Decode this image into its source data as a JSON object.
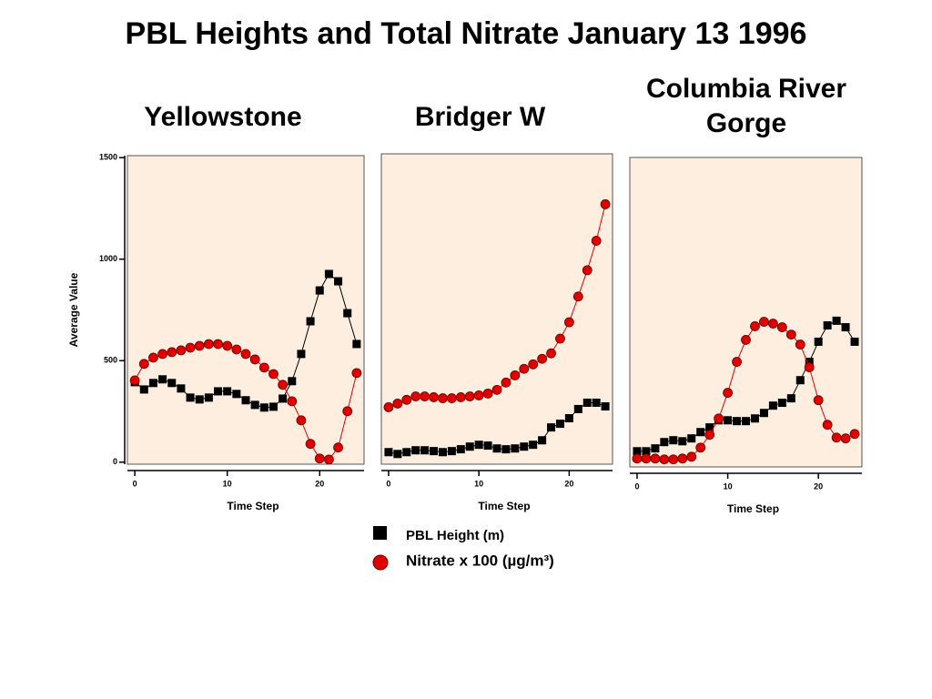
{
  "title": "PBL Heights and Total Nitrate January 13 1996",
  "chart_data": [
    {
      "type": "line",
      "title": "Yellowstone",
      "x_label": "Time Step",
      "y_label": "Average Value",
      "x": [
        0,
        1,
        2,
        3,
        4,
        5,
        6,
        7,
        8,
        9,
        10,
        11,
        12,
        13,
        14,
        15,
        16,
        17,
        18,
        19,
        20,
        21,
        22,
        23,
        24
      ],
      "xlim": [
        -0.8,
        24.8
      ],
      "xticks": [
        0,
        10,
        20
      ],
      "ylim": [
        -10,
        1510
      ],
      "yticks": [
        0,
        500,
        1000,
        1500
      ],
      "series": [
        {
          "name": "PBL Height (m)",
          "color": "#000000",
          "marker": "square",
          "values": [
            394,
            358,
            390,
            408,
            390,
            363,
            318,
            309,
            318,
            349,
            349,
            336,
            305,
            282,
            269,
            273,
            313,
            399,
            533,
            694,
            846,
            927,
            891,
            734,
            582
          ]
        },
        {
          "name": "Nitrate x 100 (µg/m³)",
          "color": "#e00000",
          "marker": "circle",
          "values": [
            403,
            484,
            515,
            533,
            542,
            551,
            564,
            573,
            582,
            582,
            573,
            555,
            533,
            506,
            466,
            434,
            381,
            300,
            206,
            90,
            18,
            13,
            72,
            251,
            439
          ]
        }
      ]
    },
    {
      "type": "line",
      "title": "Bridger W",
      "x_label": "Time Step",
      "x": [
        0,
        1,
        2,
        3,
        4,
        5,
        6,
        7,
        8,
        9,
        10,
        11,
        12,
        13,
        14,
        15,
        16,
        17,
        18,
        19,
        20,
        21,
        22,
        23,
        24
      ],
      "xlim": [
        -0.8,
        24.8
      ],
      "xticks": [
        0,
        10,
        20
      ],
      "ylim": [
        -10,
        1510
      ],
      "series": [
        {
          "color": "#000000",
          "marker": "square",
          "values": [
            49,
            40,
            49,
            58,
            58,
            54,
            49,
            54,
            63,
            76,
            85,
            81,
            67,
            63,
            67,
            76,
            85,
            107,
            170,
            188,
            215,
            260,
            291,
            291,
            273
          ]
        },
        {
          "color": "#e00000",
          "marker": "circle",
          "values": [
            269,
            287,
            305,
            322,
            322,
            318,
            313,
            313,
            318,
            322,
            327,
            336,
            354,
            390,
            425,
            457,
            479,
            506,
            533,
            605,
            685,
            811,
            940,
            1084,
            1263
          ]
        }
      ]
    },
    {
      "type": "line",
      "title": "Columbia River Gorge",
      "x_label": "Time Step",
      "x": [
        0,
        1,
        2,
        3,
        4,
        5,
        6,
        7,
        8,
        9,
        10,
        11,
        12,
        13,
        14,
        15,
        16,
        17,
        18,
        19,
        20,
        21,
        22,
        23,
        24
      ],
      "xlim": [
        -0.8,
        24.8
      ],
      "xticks": [
        0,
        10,
        20
      ],
      "ylim": [
        -10,
        1510
      ],
      "series": [
        {
          "color": "#000000",
          "marker": "square",
          "values": [
            67,
            67,
            81,
            112,
            121,
            116,
            130,
            161,
            184,
            219,
            219,
            215,
            215,
            228,
            255,
            291,
            305,
            327,
            416,
            506,
            605,
            685,
            708,
            676,
            605
          ]
        },
        {
          "color": "#e00000",
          "marker": "circle",
          "values": [
            31,
            31,
            31,
            27,
            27,
            31,
            40,
            85,
            148,
            228,
            354,
            506,
            614,
            681,
            703,
            694,
            676,
            640,
            591,
            479,
            318,
            197,
            134,
            130,
            152
          ]
        }
      ]
    }
  ]
}
